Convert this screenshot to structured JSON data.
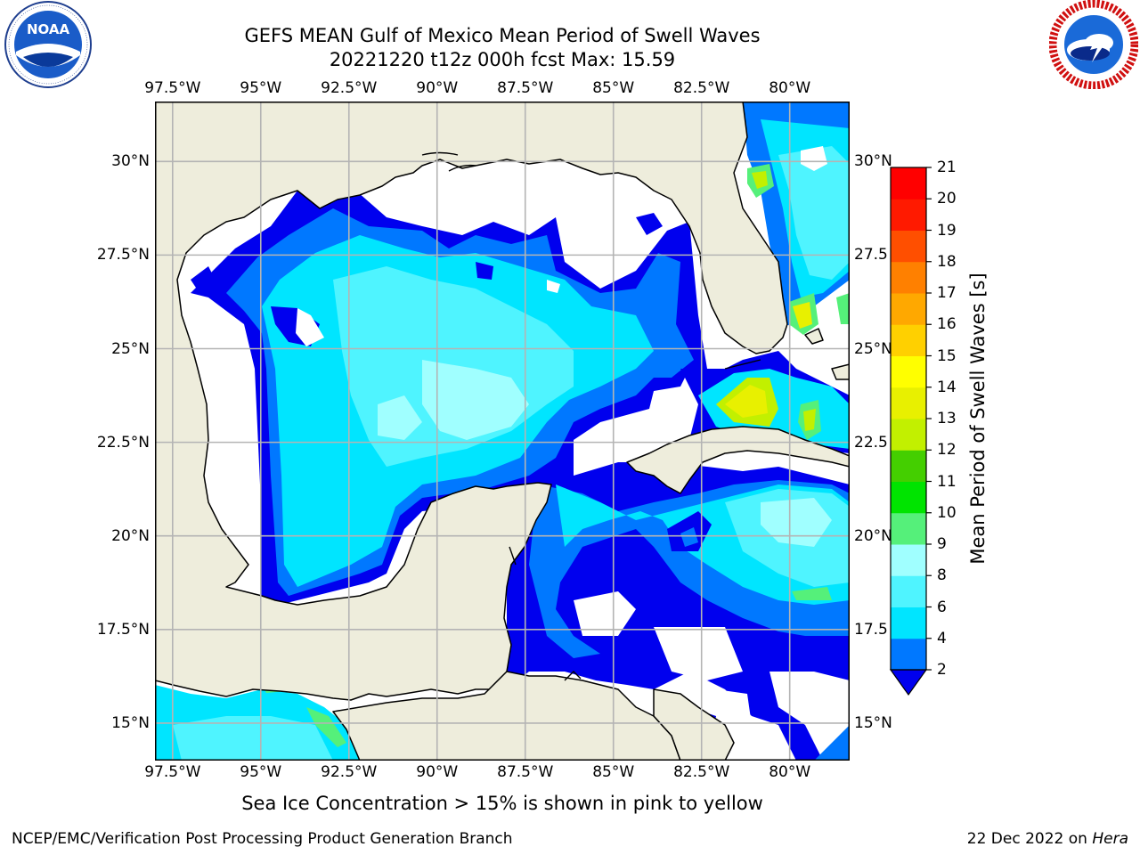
{
  "title": {
    "line1": "GEFS MEAN Gulf of Mexico Mean Period of Swell Waves",
    "line2": "20221220 t12z 000h fcst   Max: 15.59"
  },
  "logos": {
    "left": {
      "icon": "noaa-logo-icon",
      "text": "NOAA",
      "ring_text": "NATIONAL OCEANIC AND ATMOSPHERIC ADMINISTRATION · U.S. DEPARTMENT OF COMMERCE"
    },
    "right": {
      "icon": "nws-logo-icon",
      "ring_text": "NATIONAL WEATHER SERVICE"
    }
  },
  "map": {
    "lon_ticks": [
      "97.5°W",
      "95°W",
      "92.5°W",
      "90°W",
      "87.5°W",
      "85°W",
      "82.5°W",
      "80°W"
    ],
    "lon_values": [
      -97.5,
      -95,
      -92.5,
      -90,
      -87.5,
      -85,
      -82.5,
      -80
    ],
    "lat_ticks_left": [
      "30°N",
      "27.5°N",
      "25°N",
      "22.5°N",
      "20°N",
      "17.5°N",
      "15°N"
    ],
    "lat_ticks_right": [
      "30°N",
      "27.5",
      "25°N",
      "22.5",
      "20°N",
      "17.5",
      "15°N"
    ],
    "lat_values": [
      30,
      27.5,
      25,
      22.5,
      20,
      17.5,
      15
    ],
    "extent": {
      "lon_min": -98,
      "lon_max": -78.3,
      "lat_min": 14,
      "lat_max": 31.6
    },
    "grid": true,
    "colors": {
      "land": "#eeeddc",
      "no_data": "#ffffff",
      "grid": "#b4b4b4",
      "coast": "#000000"
    }
  },
  "colorbar": {
    "title": "Mean Period of Swell Waves [s]",
    "levels": [
      "2",
      "4",
      "6",
      "8",
      "9",
      "10",
      "11",
      "12",
      "13",
      "14",
      "15",
      "16",
      "17",
      "18",
      "19",
      "20",
      "21"
    ],
    "colors": [
      "#0000ee",
      "#0078ff",
      "#00e5ff",
      "#4ff4ff",
      "#a0ffff",
      "#55f07a",
      "#00e400",
      "#44cf00",
      "#c2f000",
      "#e8f000",
      "#ffff00",
      "#ffd000",
      "#ffa800",
      "#ff8000",
      "#ff4f00",
      "#ff1a00",
      "#ff0000"
    ],
    "extend": "min"
  },
  "note": "Sea Ice Concentration > 15% is shown in pink to yellow",
  "footer": {
    "left": "NCEP/EMC/Verification Post Processing Product Generation Branch",
    "right_date": "22 Dec 2022 on",
    "right_host": "Hera"
  }
}
